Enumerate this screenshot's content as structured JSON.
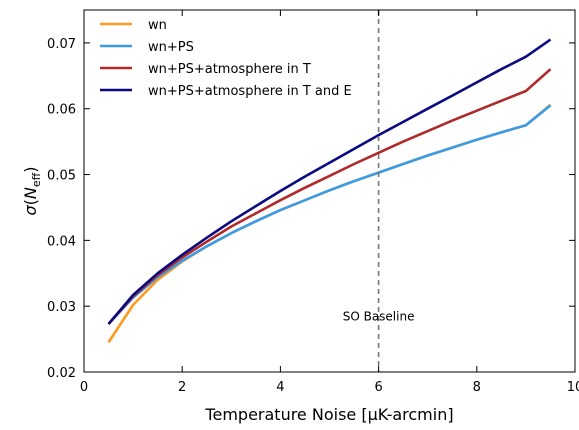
{
  "chart_data": {
    "type": "line",
    "xlabel": "Temperature Noise [μK-arcmin]",
    "ylabel_symbol": "σ",
    "ylabel_var": "N",
    "ylabel_sub": "eff",
    "xlim": [
      0,
      10
    ],
    "ylim": [
      0.02,
      0.075
    ],
    "xticks": [
      "0",
      "2",
      "4",
      "6",
      "8",
      "10"
    ],
    "xtick_values": [
      0,
      2,
      4,
      6,
      8,
      10
    ],
    "yticks": [
      "0.02",
      "0.03",
      "0.04",
      "0.05",
      "0.06",
      "0.07"
    ],
    "ytick_values": [
      0.02,
      0.03,
      0.04,
      0.05,
      0.06,
      0.07
    ],
    "x": [
      0.5,
      1,
      1.5,
      2,
      2.5,
      3,
      3.5,
      4,
      4.5,
      5,
      5.5,
      6,
      6.5,
      7,
      7.5,
      8,
      8.5,
      9,
      9.5
    ],
    "series": [
      {
        "name": "wn",
        "color": "#ff9a1a",
        "values": [
          0.0245,
          0.0302,
          0.034,
          0.0368,
          0.0391,
          0.0411,
          0.0429,
          0.0446,
          0.0461,
          0.0476,
          0.049,
          0.0503,
          0.0516,
          0.0529,
          0.0541,
          0.0553,
          0.0564,
          0.0575,
          0.0606
        ]
      },
      {
        "name": "wn+PS",
        "color": "#3a9be6",
        "values": [
          0.0273,
          0.0313,
          0.0344,
          0.0369,
          0.0391,
          0.0411,
          0.0429,
          0.0446,
          0.0461,
          0.0476,
          0.049,
          0.0503,
          0.0516,
          0.0529,
          0.0541,
          0.0553,
          0.0564,
          0.0575,
          0.0605
        ]
      },
      {
        "name": "wn+PS+atmosphere in T",
        "color": "#b02a2a",
        "values": [
          0.0273,
          0.0315,
          0.0347,
          0.0374,
          0.0398,
          0.0421,
          0.0441,
          0.0461,
          0.048,
          0.0498,
          0.0516,
          0.0533,
          0.055,
          0.0566,
          0.0582,
          0.0597,
          0.0612,
          0.0627,
          0.066
        ]
      },
      {
        "name": "wn+PS+atmosphere in T and E",
        "color": "#0a0a80",
        "values": [
          0.0273,
          0.0317,
          0.035,
          0.0378,
          0.0404,
          0.0429,
          0.0452,
          0.0475,
          0.0497,
          0.0518,
          0.0539,
          0.056,
          0.058,
          0.06,
          0.062,
          0.064,
          0.066,
          0.0679,
          0.0705
        ]
      }
    ],
    "vline": {
      "x": 6,
      "label": "SO Baseline",
      "label_y": 0.0278,
      "color": "#777777"
    },
    "legend_position": "top-left",
    "grid": false
  }
}
